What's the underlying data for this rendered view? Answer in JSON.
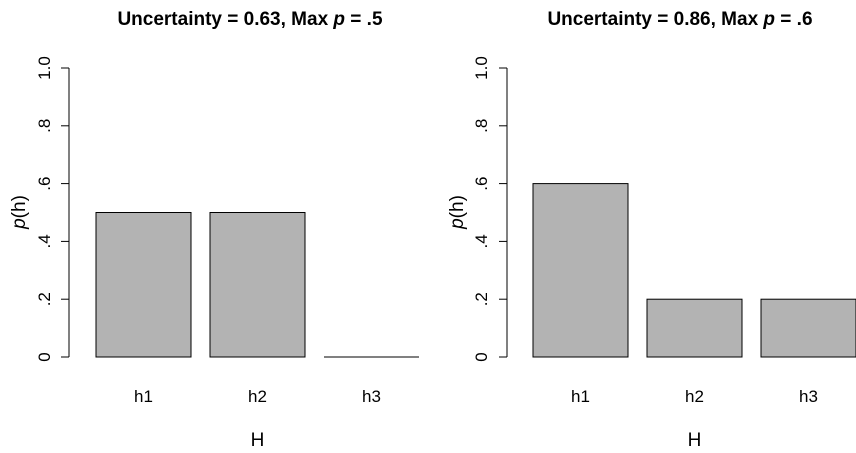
{
  "chart_data": [
    {
      "type": "bar",
      "title_prefix": "Uncertainty = 0.63, Max ",
      "title_var": "p",
      "title_suffix": " = .5",
      "categories": [
        "h1",
        "h2",
        "h3"
      ],
      "values": [
        0.5,
        0.5,
        0.0
      ],
      "xlabel": "H",
      "ylabel_var": "p",
      "ylabel_rest": "(h)",
      "ylim": [
        0,
        1.0
      ],
      "yticks": [
        0,
        0.2,
        0.4,
        0.6,
        0.8,
        1.0
      ],
      "ytick_labels": [
        "0",
        ".2",
        ".4",
        ".6",
        ".8",
        "1.0"
      ],
      "grid": false,
      "bar_color": "#b3b3b3"
    },
    {
      "type": "bar",
      "title_prefix": "Uncertainty = 0.86, Max ",
      "title_var": "p",
      "title_suffix": " = .6",
      "categories": [
        "h1",
        "h2",
        "h3"
      ],
      "values": [
        0.6,
        0.2,
        0.2
      ],
      "xlabel": "H",
      "ylabel_var": "p",
      "ylabel_rest": "(h)",
      "ylim": [
        0,
        1.0
      ],
      "yticks": [
        0,
        0.2,
        0.4,
        0.6,
        0.8,
        1.0
      ],
      "ytick_labels": [
        "0",
        ".2",
        ".4",
        ".6",
        ".8",
        "1.0"
      ],
      "grid": false,
      "bar_color": "#b3b3b3"
    }
  ]
}
